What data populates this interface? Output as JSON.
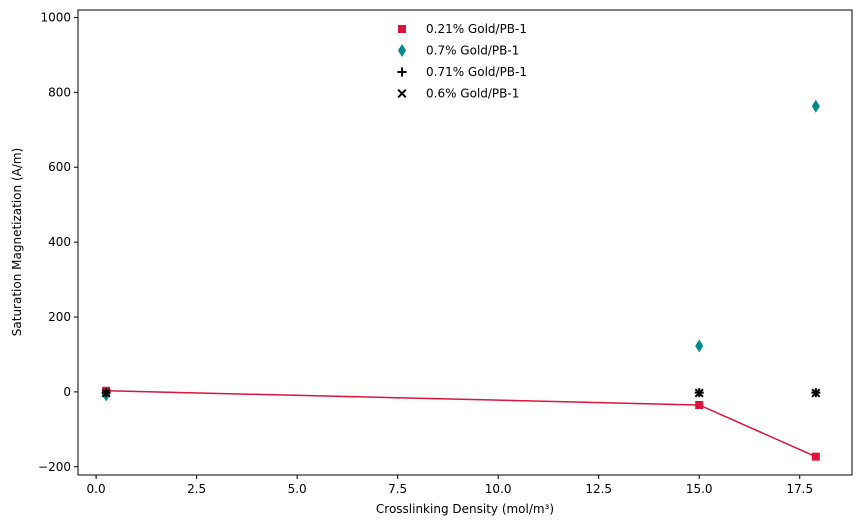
{
  "chart_data": {
    "type": "scatter",
    "xlabel": "Crosslinking Density (mol/m³)",
    "ylabel": "Saturation Magnetization (A/m)",
    "xlim": [
      -0.45,
      18.8
    ],
    "ylim": [
      -222,
      1020
    ],
    "x_ticks": [
      0.0,
      2.5,
      5.0,
      7.5,
      10.0,
      12.5,
      15.0,
      17.5
    ],
    "x_tick_labels": [
      "0.0",
      "2.5",
      "5.0",
      "7.5",
      "10.0",
      "12.5",
      "15.0",
      "17.5"
    ],
    "y_ticks": [
      -200,
      0,
      200,
      400,
      600,
      800,
      1000
    ],
    "y_tick_labels": [
      "−200",
      "0",
      "200",
      "400",
      "600",
      "800",
      "1000"
    ],
    "grid": false,
    "legend_position": "top-center",
    "series": [
      {
        "name": "0.21% Gold/PB-1",
        "marker": "square",
        "color": "#DC143C",
        "connected": true,
        "x": [
          0.25,
          15.0,
          17.9
        ],
        "y": [
          3,
          -35,
          -173
        ]
      },
      {
        "name": "0.7% Gold/PB-1",
        "marker": "thin-diamond",
        "color": "#008B8B",
        "connected": false,
        "x": [
          0.25,
          15.0,
          17.9
        ],
        "y": [
          -8,
          123,
          763
        ]
      },
      {
        "name": "0.71% Gold/PB-1",
        "marker": "plus",
        "color": "#000000",
        "connected": false,
        "x": [
          0.25,
          15.0,
          17.9
        ],
        "y": [
          -2,
          -2,
          -2
        ]
      },
      {
        "name": "0.6% Gold/PB-1",
        "marker": "x",
        "color": "#000000",
        "connected": false,
        "x": [
          0.25,
          15.0,
          17.9
        ],
        "y": [
          -3,
          -3,
          -3
        ]
      }
    ]
  }
}
